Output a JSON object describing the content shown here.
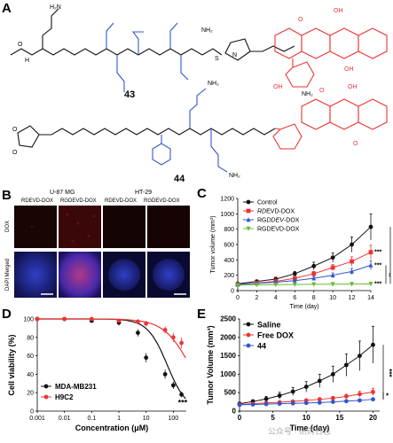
{
  "colors": {
    "black": "#111111",
    "blue": "#3355cc",
    "red": "#ee3333",
    "green": "#66bb33",
    "gray": "#666666",
    "micro_bg": "#120707"
  },
  "panel_a": {
    "letter": "A",
    "compound1": "43",
    "compound2": "44",
    "atoms": {
      "nh2": "NH₂",
      "nh": "NH",
      "h2n": "H₂N",
      "hn": "HN",
      "h": "H",
      "o": "O",
      "oh": "OH",
      "s": "S",
      "n": "N"
    }
  },
  "panel_b": {
    "letter": "B",
    "cell_line_1": "U-87 MG",
    "cell_line_2": "HT-29",
    "col1": "RDEVD-DOX",
    "col2": "RGDEVD-DOX",
    "col3": "RDEVD-DOX",
    "col4": "RGDEVD-DOX",
    "row1": "DOX",
    "row2": "DAPI Merged"
  },
  "chart_data": [
    {
      "panel": "C",
      "type": "line",
      "xlabel": "Time (day)",
      "ylabel": "Tumor volume (mm³)",
      "x": [
        0,
        2,
        4,
        6,
        8,
        10,
        12,
        14
      ],
      "xticks": [
        "0",
        "2",
        "4",
        "6",
        "8",
        "10",
        "12",
        "14"
      ],
      "xlim": [
        0,
        14
      ],
      "ylim": [
        0,
        1200
      ],
      "yticks": [
        "0",
        "200",
        "400",
        "600",
        "800",
        "1000",
        "1200"
      ],
      "legend_position": "top-left",
      "series": [
        {
          "name": "Control",
          "color": "#111111",
          "marker": "circle",
          "values": [
            90,
            120,
            150,
            220,
            320,
            430,
            600,
            830
          ],
          "err": [
            10,
            15,
            20,
            30,
            50,
            60,
            100,
            170
          ]
        },
        {
          "name": "RDEVD-DOX",
          "label_pre": "",
          "label_italic": "RD",
          "label_post": "EVD-DOX",
          "color": "#ee3333",
          "marker": "square",
          "values": [
            80,
            100,
            120,
            160,
            220,
            300,
            380,
            500
          ],
          "err": [
            8,
            10,
            60,
            25,
            30,
            40,
            60,
            90
          ]
        },
        {
          "name": "RGDDEV-DOX",
          "label_pre": "RG",
          "label_italic": "DDEV",
          "label_post": "-DOX",
          "color": "#3355cc",
          "marker": "triangle",
          "values": [
            80,
            95,
            110,
            130,
            160,
            200,
            250,
            330
          ],
          "err": [
            8,
            10,
            15,
            20,
            25,
            30,
            40,
            60
          ]
        },
        {
          "name": "RGDEVD-DOX",
          "color": "#66bb33",
          "marker": "triangle-down",
          "values": [
            70,
            75,
            78,
            80,
            82,
            84,
            85,
            88
          ],
          "err": [
            5,
            5,
            5,
            6,
            6,
            6,
            8,
            10
          ]
        }
      ],
      "annotations": [
        "***",
        "***",
        "***",
        "**",
        "***"
      ]
    },
    {
      "panel": "D",
      "type": "scatter",
      "xlabel": "Concentration (μM)",
      "ylabel": "Cell viability (%)",
      "xscale": "log",
      "x": [
        0.001,
        0.01,
        0.1,
        1,
        5,
        10,
        50,
        100,
        200
      ],
      "xticks": [
        "0.001",
        "0.01",
        "0.1",
        "1",
        "10",
        "100"
      ],
      "ylim": [
        0,
        100
      ],
      "yticks": [
        "0",
        "20",
        "40",
        "60",
        "80",
        "100"
      ],
      "legend_position": "bottom-left",
      "series": [
        {
          "name": "MDA-MB231",
          "color": "#111111",
          "marker": "circle",
          "values": [
            100,
            100,
            98,
            96,
            85,
            58,
            40,
            28,
            18
          ],
          "err": [
            2,
            2,
            2,
            3,
            4,
            5,
            5,
            4,
            3
          ]
        },
        {
          "name": "H9C2",
          "color": "#ee3333",
          "marker": "circle",
          "values": [
            100,
            100,
            100,
            98,
            97,
            95,
            88,
            80,
            74
          ],
          "err": [
            2,
            2,
            2,
            2,
            3,
            3,
            4,
            5,
            6
          ]
        }
      ],
      "annotations": [
        "***"
      ]
    },
    {
      "panel": "E",
      "type": "line",
      "xlabel": "Time (day)",
      "ylabel": "Tumor Volume (mm³)",
      "x": [
        0,
        2,
        4,
        6,
        8,
        10,
        12,
        14,
        16,
        18,
        20
      ],
      "xticks": [
        "0",
        "5",
        "10",
        "15",
        "20"
      ],
      "xlim": [
        0,
        21
      ],
      "ylim": [
        0,
        2500
      ],
      "yticks": [
        "0",
        "500",
        "1000",
        "1500",
        "2000",
        "2500"
      ],
      "legend_position": "top-left",
      "series": [
        {
          "name": "Saline",
          "color": "#111111",
          "marker": "circle",
          "values": [
            200,
            260,
            330,
            420,
            530,
            660,
            820,
            1000,
            1250,
            1500,
            1800
          ],
          "err": [
            40,
            50,
            70,
            90,
            110,
            140,
            180,
            220,
            300,
            400,
            500
          ]
        },
        {
          "name": "Free DOX",
          "color": "#ee3333",
          "marker": "circle",
          "values": [
            180,
            200,
            220,
            240,
            260,
            290,
            320,
            350,
            400,
            460,
            520
          ],
          "err": [
            20,
            25,
            30,
            30,
            35,
            40,
            45,
            50,
            60,
            80,
            100
          ]
        },
        {
          "name": "44",
          "color": "#3355cc",
          "marker": "circle",
          "values": [
            170,
            180,
            190,
            200,
            210,
            220,
            230,
            250,
            270,
            290,
            320
          ],
          "err": [
            15,
            15,
            20,
            20,
            20,
            25,
            25,
            30,
            30,
            35,
            40
          ]
        }
      ],
      "annotations": [
        "***",
        "*"
      ]
    }
  ],
  "watermark": "公众号 · 研药日志"
}
